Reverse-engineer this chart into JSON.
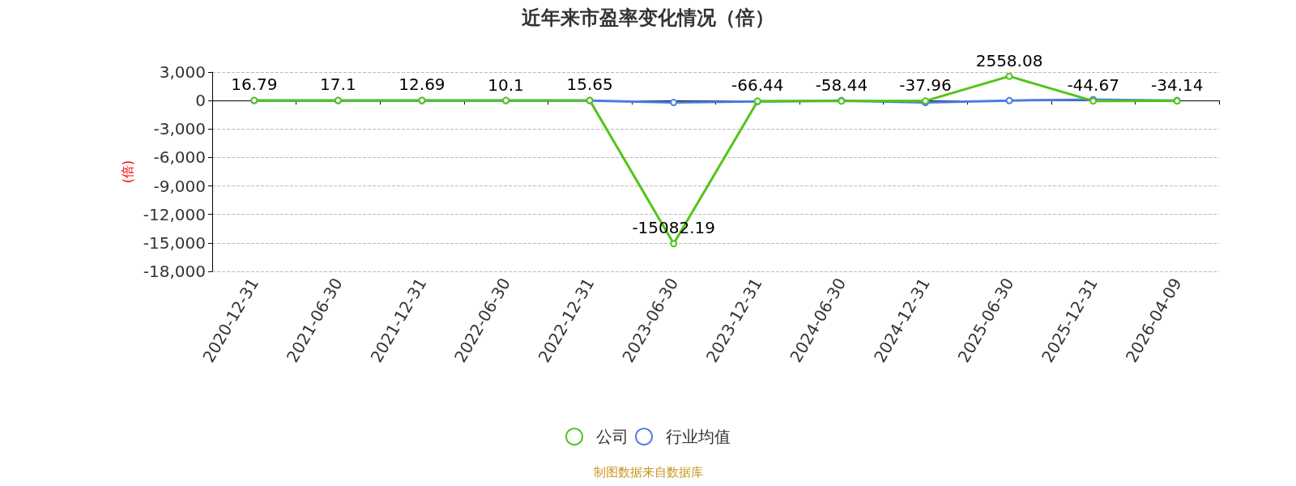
{
  "chart_data": {
    "type": "line",
    "title": "近年来市盈率变化情况（倍）",
    "ylabel": "(倍)",
    "categories": [
      "2020-12-31",
      "2021-06-30",
      "2021-12-31",
      "2022-06-30",
      "2022-12-31",
      "2023-06-30",
      "2023-12-31",
      "2024-06-30",
      "2024-12-31",
      "2025-06-30",
      "2025-12-31",
      "2026-04-09"
    ],
    "series": [
      {
        "name": "公司",
        "color": "#52c41a",
        "values": [
          16.79,
          17.1,
          12.69,
          10.1,
          15.65,
          -15082.19,
          -66.44,
          -58.44,
          -37.96,
          2558.08,
          -44.67,
          -34.14
        ],
        "value_labels": [
          "16.79",
          "17.1",
          "12.69",
          "10.1",
          "15.65",
          "-15082.19",
          "-66.44",
          "-58.44",
          "-37.96",
          "2558.08",
          "-44.67",
          "-34.14"
        ]
      },
      {
        "name": "行业均值",
        "color": "#4a7ee0",
        "values": [
          0,
          0,
          0,
          0,
          0,
          -200,
          -100,
          0,
          -200,
          0,
          100,
          0
        ]
      }
    ],
    "ylim": [
      -18000,
      3000
    ],
    "yticks": [
      {
        "value": -18000,
        "label": "-18,000"
      },
      {
        "value": -15000,
        "label": "-15,000"
      },
      {
        "value": -12000,
        "label": "-12,000"
      },
      {
        "value": -9000,
        "label": "-9,000"
      },
      {
        "value": -6000,
        "label": "-6,000"
      },
      {
        "value": -3000,
        "label": "-3,000"
      },
      0,
      {
        "value": 3000,
        "label": "3,000"
      }
    ],
    "grid": "y",
    "legend": "bottom",
    "marker": "circle",
    "line_style": "solid",
    "annotations": [
      "制图数据来自数据库"
    ]
  }
}
